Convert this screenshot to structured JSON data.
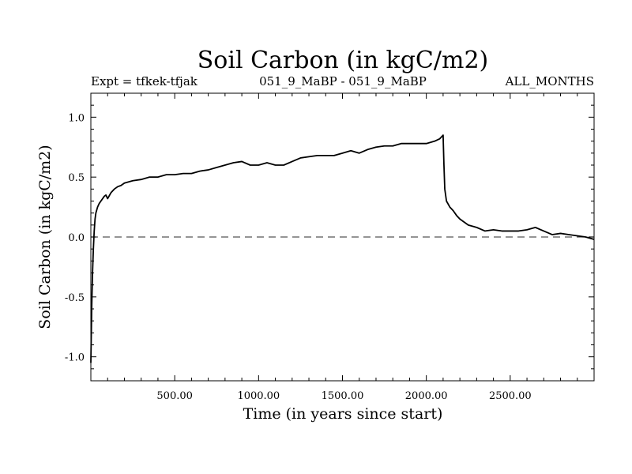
{
  "chart_data": {
    "type": "line",
    "title": "Soil Carbon (in kgC/m2)",
    "subtitle_left": "Expt = tfkek-tfjak",
    "subtitle_center": "051_9_MaBP - 051_9_MaBP",
    "subtitle_right": "ALL_MONTHS",
    "xlabel": "Time (in years since start)",
    "ylabel": "Soil Carbon (in kgC/m2)",
    "xlim": [
      0,
      3000
    ],
    "ylim": [
      -1.2,
      1.2
    ],
    "x_ticks": [
      500,
      1000,
      1500,
      2000,
      2500
    ],
    "x_tick_labels": [
      "500.00",
      "1000.00",
      "1500.00",
      "2000.00",
      "2500.00"
    ],
    "y_ticks": [
      -1.0,
      -0.5,
      0.0,
      0.5,
      1.0
    ],
    "y_tick_labels": [
      "-1.0",
      "-0.5",
      "0.0",
      "0.5",
      "1.0"
    ],
    "reference_line": {
      "y": 0.0,
      "style": "dashed",
      "color": "#555555"
    },
    "line_color": "#000000",
    "series": [
      {
        "x": [
          0,
          5,
          10,
          15,
          20,
          25,
          30,
          40,
          50,
          60,
          70,
          80,
          90,
          100,
          120,
          140,
          160,
          180,
          200,
          250,
          300,
          350,
          400,
          450,
          500,
          550,
          600,
          650,
          700,
          750,
          800,
          850,
          900,
          950,
          1000,
          1050,
          1100,
          1150,
          1200,
          1250,
          1300,
          1350,
          1400,
          1450,
          1500,
          1550,
          1600,
          1650,
          1700,
          1750,
          1800,
          1850,
          1900,
          1950,
          2000,
          2050,
          2080,
          2100,
          2105,
          2110,
          2120,
          2140,
          2160,
          2180,
          2200,
          2250,
          2300,
          2350,
          2400,
          2450,
          2500,
          2550,
          2600,
          2650,
          2700,
          2750,
          2800,
          2850,
          2900,
          2950,
          3000
        ],
        "values": [
          -1.05,
          -0.6,
          -0.3,
          -0.1,
          0.05,
          0.15,
          0.2,
          0.25,
          0.28,
          0.3,
          0.32,
          0.34,
          0.35,
          0.32,
          0.37,
          0.4,
          0.42,
          0.43,
          0.45,
          0.47,
          0.48,
          0.5,
          0.5,
          0.52,
          0.52,
          0.53,
          0.53,
          0.55,
          0.56,
          0.58,
          0.6,
          0.62,
          0.63,
          0.6,
          0.6,
          0.62,
          0.6,
          0.6,
          0.63,
          0.66,
          0.67,
          0.68,
          0.68,
          0.68,
          0.7,
          0.72,
          0.7,
          0.73,
          0.75,
          0.76,
          0.76,
          0.78,
          0.78,
          0.78,
          0.78,
          0.8,
          0.82,
          0.85,
          0.6,
          0.4,
          0.3,
          0.25,
          0.22,
          0.18,
          0.15,
          0.1,
          0.08,
          0.05,
          0.06,
          0.05,
          0.05,
          0.05,
          0.06,
          0.08,
          0.05,
          0.02,
          0.03,
          0.02,
          0.01,
          0.0,
          -0.02
        ]
      }
    ]
  }
}
